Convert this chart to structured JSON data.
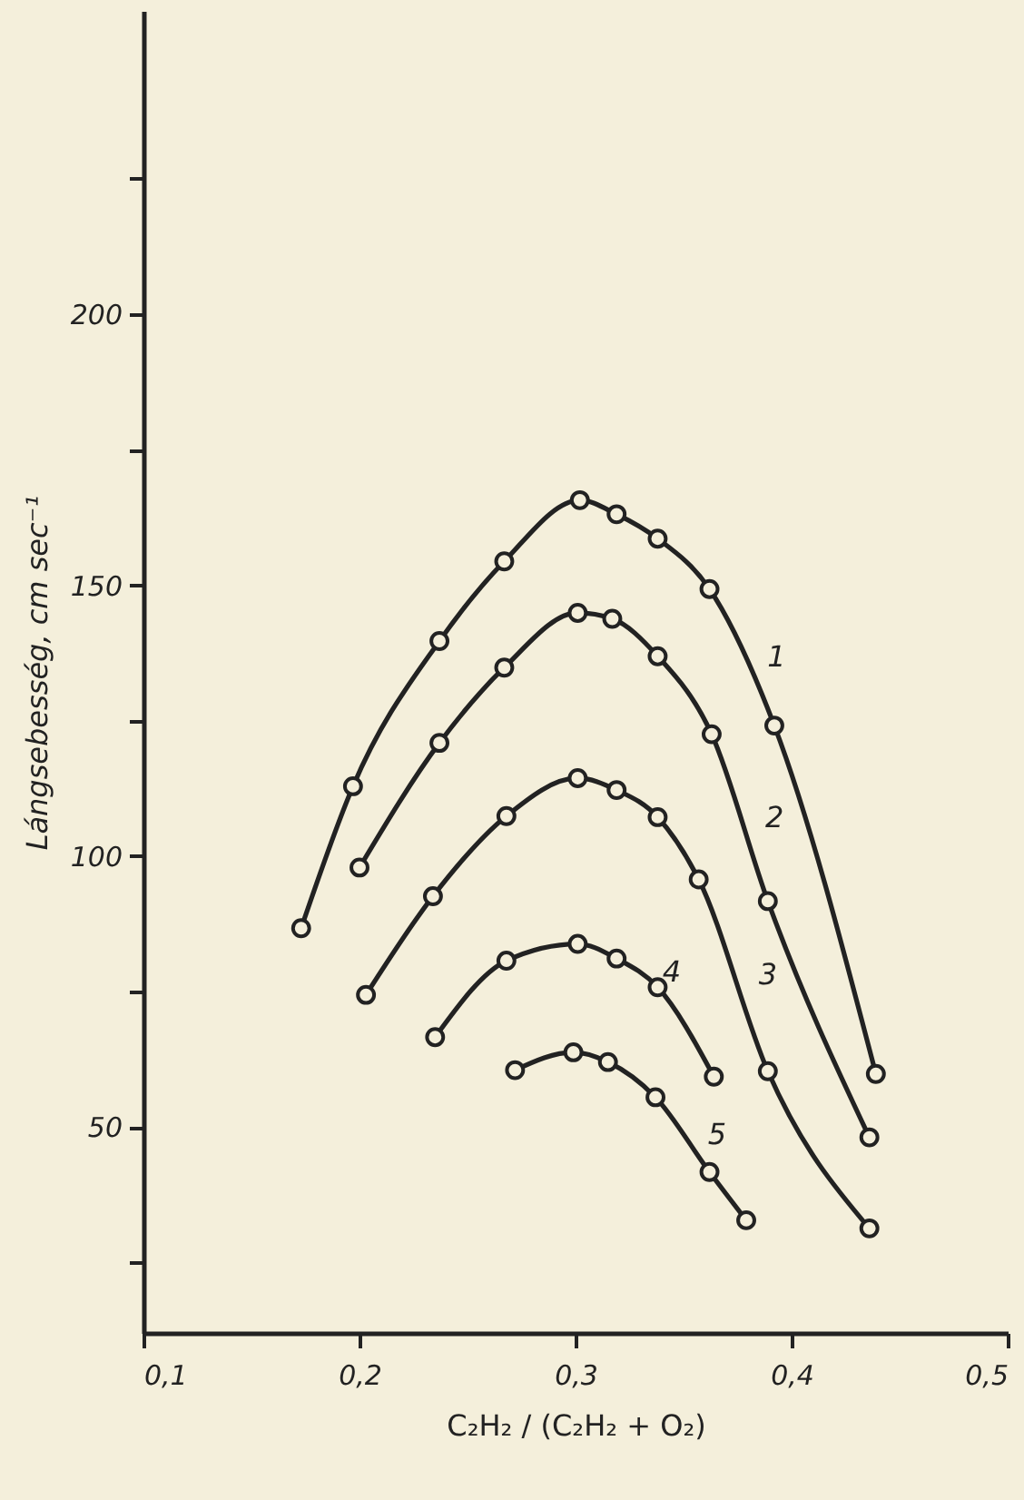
{
  "chart_data": {
    "type": "line",
    "xlabel": "C₂H₂ / (C₂H₂ + O₂)",
    "ylabel": "Lángsebesség, cm sec⁻¹",
    "xlim": [
      0.1,
      0.5
    ],
    "ylim": [
      12,
      256
    ],
    "xticks": [
      {
        "value": 0.1,
        "label": "0,1"
      },
      {
        "value": 0.2,
        "label": "0,2"
      },
      {
        "value": 0.3,
        "label": "0,3"
      },
      {
        "value": 0.4,
        "label": "0,4"
      },
      {
        "value": 0.5,
        "label": "0,5"
      }
    ],
    "yticks": [
      {
        "value": 25,
        "label": null
      },
      50,
      {
        "value": 75,
        "label": null
      },
      100,
      {
        "value": 125,
        "label": null
      },
      150,
      {
        "value": 175,
        "label": null
      },
      200,
      {
        "value": 225,
        "label": null
      }
    ],
    "grid": false,
    "marker": "circle",
    "line_style": "solid",
    "series": [
      {
        "name": "1",
        "color": "#222222",
        "x": [
          0.173,
          0.197,
          0.237,
          0.267,
          0.302,
          0.319,
          0.338,
          0.362,
          0.392,
          0.439
        ],
        "values": [
          86.7,
          112.9,
          139.7,
          154.4,
          165.7,
          163.1,
          158.6,
          149.3,
          124.1,
          59.8
        ]
      },
      {
        "name": "2",
        "color": "#222222",
        "x": [
          0.2,
          0.237,
          0.267,
          0.301,
          0.317,
          0.338,
          0.363,
          0.389,
          0.436
        ],
        "values": [
          97.9,
          120.9,
          134.8,
          144.9,
          143.8,
          136.9,
          122.5,
          91.7,
          48.1
        ]
      },
      {
        "name": "3",
        "color": "#222222",
        "x": [
          0.203,
          0.234,
          0.268,
          0.301,
          0.319,
          0.338,
          0.357,
          0.389,
          0.436
        ],
        "values": [
          74.4,
          92.6,
          107.4,
          114.4,
          112.2,
          107.2,
          95.7,
          60.3,
          31.3
        ]
      },
      {
        "name": "4",
        "color": "#222222",
        "x": [
          0.235,
          0.268,
          0.301,
          0.319,
          0.338,
          0.364
        ],
        "values": [
          66.6,
          80.7,
          83.8,
          81.1,
          75.8,
          59.3
        ]
      },
      {
        "name": "5",
        "color": "#222222",
        "x": [
          0.272,
          0.299,
          0.315,
          0.337,
          0.362,
          0.379
        ],
        "values": [
          60.5,
          63.8,
          62.0,
          55.5,
          41.7,
          32.8
        ]
      }
    ]
  }
}
